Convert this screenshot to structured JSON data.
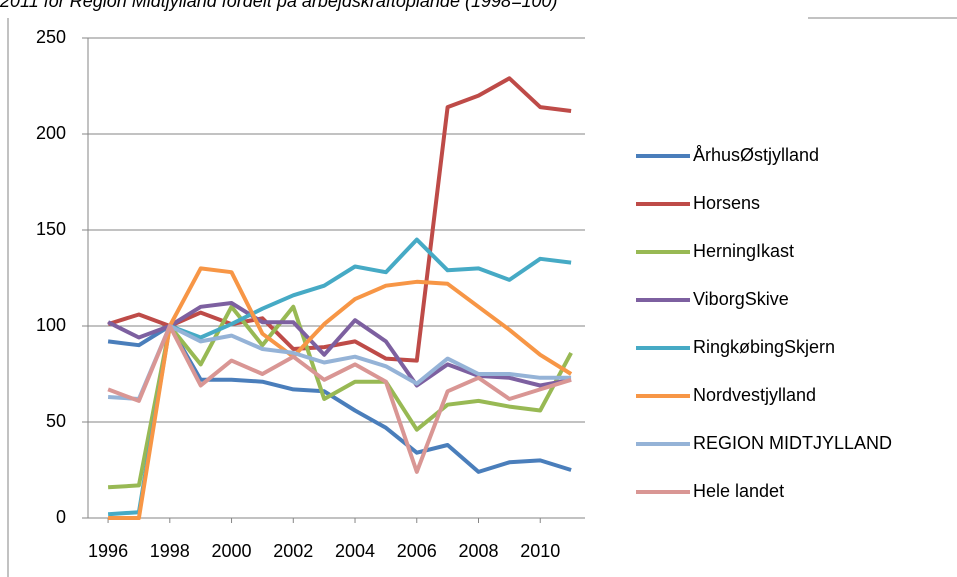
{
  "chart_data": {
    "type": "line",
    "title": "2011 for Region Midtjylland fordelt på arbejdskraftoplande (1998=100)",
    "x": [
      1996,
      1997,
      1998,
      1999,
      2000,
      2001,
      2002,
      2003,
      2004,
      2005,
      2006,
      2007,
      2008,
      2009,
      2010,
      2011
    ],
    "xlim": [
      1995.35,
      2011.45
    ],
    "xticks": [
      1996,
      1998,
      2000,
      2002,
      2004,
      2006,
      2008,
      2010
    ],
    "ylim": [
      0,
      250
    ],
    "yticks": [
      0,
      50,
      100,
      150,
      200,
      250
    ],
    "grid": true,
    "legend": "right",
    "series": [
      {
        "name": "ÅrhusØstjylland",
        "color": "#4a7ebb",
        "values": [
          92,
          90,
          100,
          72,
          72,
          71,
          67,
          66,
          56,
          47,
          34,
          38,
          24,
          29,
          30,
          25
        ]
      },
      {
        "name": "Horsens",
        "color": "#be4b48",
        "values": [
          101,
          106,
          100,
          107,
          101,
          104,
          88,
          89,
          92,
          83,
          82,
          214,
          220,
          229,
          214,
          212
        ]
      },
      {
        "name": "HerningIkast",
        "color": "#98b954",
        "values": [
          16,
          17,
          100,
          80,
          110,
          90,
          110,
          62,
          71,
          71,
          46,
          59,
          61,
          58,
          56,
          86
        ]
      },
      {
        "name": "ViborgSkive",
        "color": "#7d60a0",
        "values": [
          102,
          94,
          100,
          110,
          112,
          102,
          102,
          85,
          103,
          92,
          69,
          80,
          74,
          73,
          69,
          72
        ]
      },
      {
        "name": "RingkøbingSkjern",
        "color": "#46aac5",
        "values": [
          2,
          3,
          100,
          94,
          101,
          109,
          116,
          121,
          131,
          128,
          145,
          129,
          130,
          124,
          135,
          133
        ]
      },
      {
        "name": "Nordvestjylland",
        "color": "#f79646",
        "values": [
          0,
          0,
          100,
          130,
          128,
          96,
          84,
          101,
          114,
          121,
          123,
          122,
          110,
          98,
          85,
          75
        ]
      },
      {
        "name": "REGION MIDTJYLLAND",
        "color": "#95b3d7",
        "values": [
          63,
          62,
          100,
          92,
          95,
          88,
          86,
          81,
          84,
          79,
          70,
          83,
          75,
          75,
          73,
          73
        ]
      },
      {
        "name": "Hele landet",
        "color": "#d99694",
        "values": [
          67,
          61,
          100,
          69,
          82,
          75,
          84,
          72,
          80,
          71,
          24,
          66,
          73,
          62,
          67,
          72
        ]
      }
    ]
  }
}
